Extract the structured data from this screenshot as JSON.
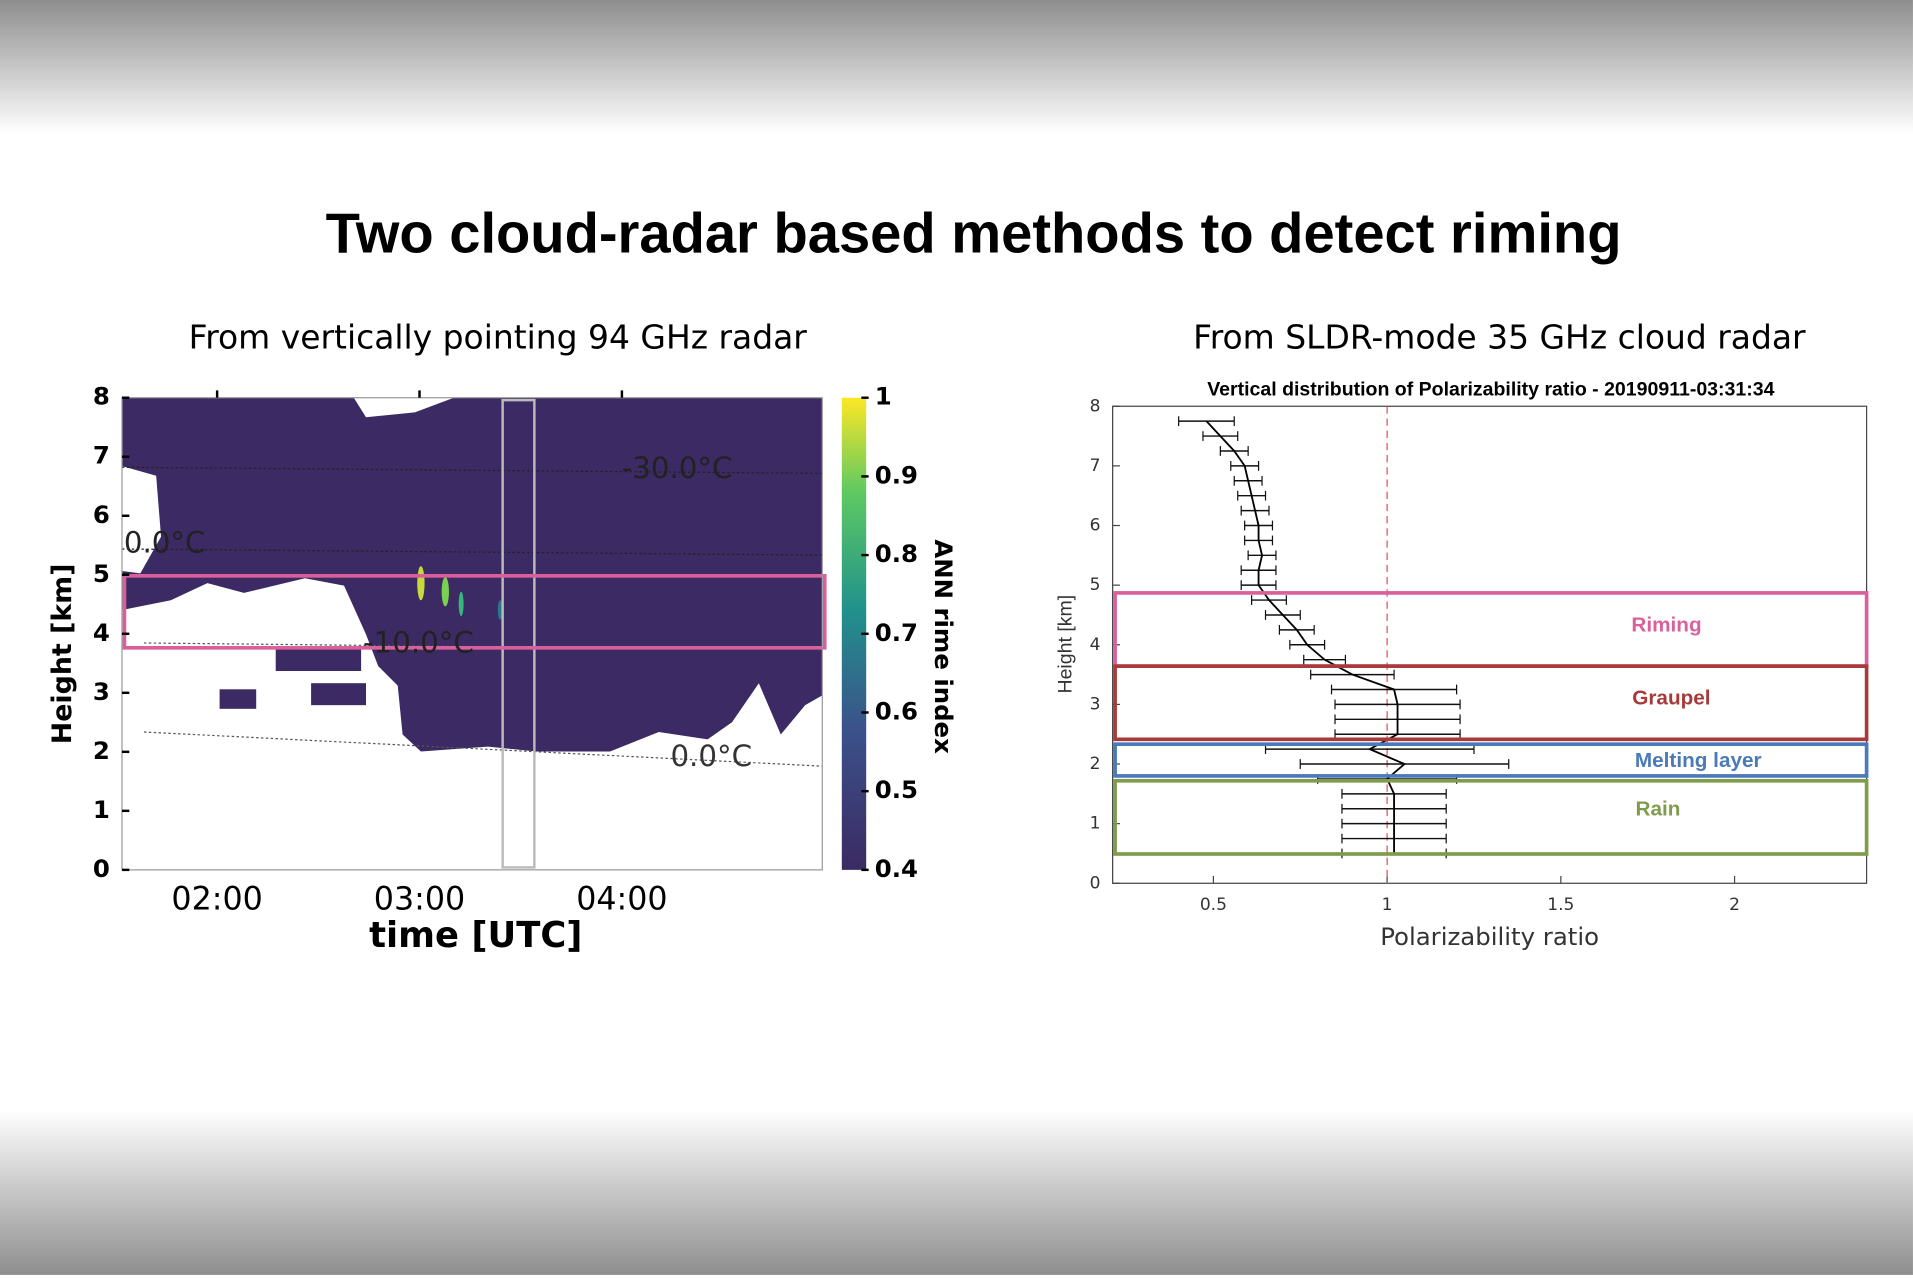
{
  "slide": {
    "title": "Two cloud-radar based methods to detect riming"
  },
  "left": {
    "subtitle": "From vertically pointing 94 GHz radar",
    "ylabel": "Height [km]",
    "xlabel": "time [UTC]",
    "ylim": [
      0,
      8
    ],
    "yticks": [
      0,
      1,
      2,
      3,
      4,
      5,
      6,
      7,
      8
    ],
    "xlim": [
      1.53,
      4.99
    ],
    "xticks": [
      {
        "value": 2,
        "label": "02:00"
      },
      {
        "value": 3,
        "label": "03:00"
      },
      {
        "value": 4,
        "label": "04:00"
      }
    ],
    "colorbar": {
      "label": "ANN rime index",
      "lim": [
        0.4,
        1
      ],
      "ticks": [
        0.4,
        0.5,
        0.6,
        0.7,
        0.8,
        0.9,
        1
      ]
    },
    "isotherms": [
      {
        "label": "-30.0°C"
      },
      {
        "label": "0.0°C"
      },
      {
        "label": "-10.0°C"
      },
      {
        "label": "0.0°C"
      }
    ]
  },
  "right": {
    "subtitle": "From SLDR-mode 35 GHz cloud radar",
    "title": "Vertical distribution of Polarizability ratio - 20190911-03:31:34",
    "xlabel": "Polarizability ratio",
    "ylabel": "Height [km]",
    "xlim": [
      0.21,
      2.38
    ],
    "xticks": [
      0.5,
      1,
      1.5,
      2
    ],
    "ylim": [
      0,
      8
    ],
    "yticks": [
      0,
      1,
      2,
      3,
      4,
      5,
      6,
      7,
      8
    ],
    "heights": [
      0.5,
      0.75,
      1.0,
      1.25,
      1.5,
      1.75,
      2.0,
      2.25,
      2.5,
      2.75,
      3.0,
      3.25,
      3.5,
      3.75,
      4.0,
      4.25,
      4.5,
      4.75,
      5.0,
      5.25,
      5.5,
      5.75,
      6.0,
      6.25,
      6.5,
      6.75,
      7.0,
      7.25,
      7.5,
      7.75
    ],
    "values": [
      1.02,
      1.02,
      1.02,
      1.02,
      1.02,
      1.0,
      1.05,
      0.95,
      1.03,
      1.03,
      1.03,
      1.02,
      0.9,
      0.82,
      0.77,
      0.74,
      0.7,
      0.66,
      0.63,
      0.63,
      0.64,
      0.63,
      0.63,
      0.62,
      0.61,
      0.6,
      0.59,
      0.56,
      0.52,
      0.48
    ],
    "errors": [
      0.15,
      0.15,
      0.15,
      0.15,
      0.15,
      0.2,
      0.3,
      0.3,
      0.18,
      0.18,
      0.18,
      0.18,
      0.12,
      0.06,
      0.05,
      0.05,
      0.05,
      0.05,
      0.05,
      0.05,
      0.04,
      0.04,
      0.04,
      0.04,
      0.04,
      0.04,
      0.04,
      0.04,
      0.05,
      0.08
    ],
    "layers": [
      {
        "label": "Riming",
        "color": "#d9609a"
      },
      {
        "label": "Graupel",
        "color": "#a83a3a"
      },
      {
        "label": "Melting layer",
        "color": "#4a7ab8"
      },
      {
        "label": "Rain",
        "color": "#7f9c4c"
      }
    ]
  }
}
